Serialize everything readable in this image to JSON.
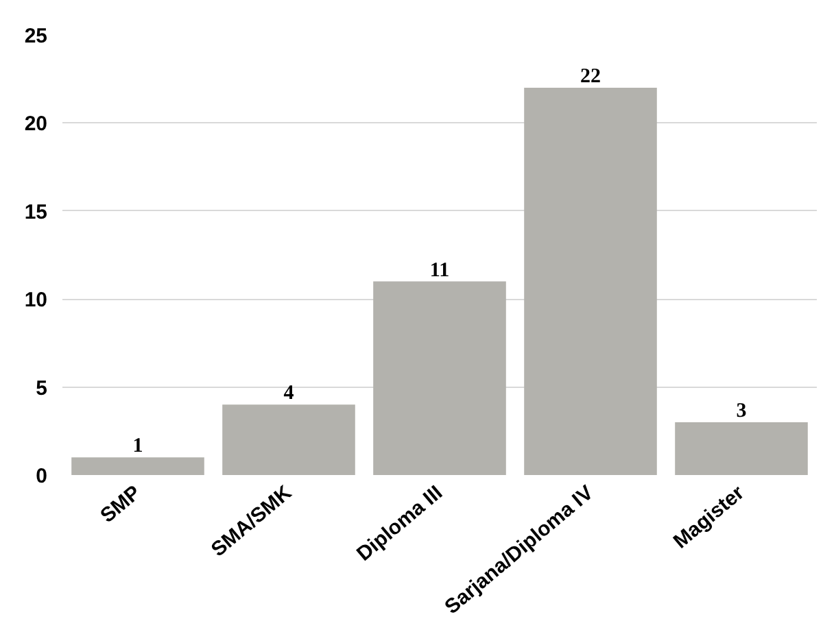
{
  "chart_data": {
    "type": "bar",
    "categories": [
      "SMP",
      "SMA/SMK",
      "Diploma III",
      "Sarjana/Diploma IV",
      "Magister"
    ],
    "values": [
      1,
      4,
      11,
      22,
      3
    ],
    "color": "#b3b2ad",
    "ylim": [
      0,
      25
    ],
    "yticks": [
      0,
      5,
      10,
      15,
      20,
      25
    ],
    "grid": "y",
    "data_labels": true
  }
}
